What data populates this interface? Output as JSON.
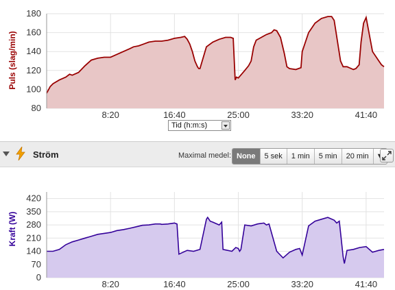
{
  "chart_data": [
    {
      "type": "area",
      "ylabel": "Puls (slag/min)",
      "ylim": [
        80,
        180
      ],
      "yticks": [
        80,
        100,
        120,
        140,
        160,
        180
      ],
      "xlim": [
        0,
        2640
      ],
      "xticks": [
        500,
        1000,
        1500,
        2000,
        2500
      ],
      "xtick_labels": [
        "8:20",
        "16:40",
        "25:00",
        "33:20",
        "41:40"
      ],
      "color": "#990000",
      "fill": "#e8c6c6",
      "grid": true,
      "x": [
        0,
        28,
        50,
        100,
        150,
        180,
        200,
        250,
        300,
        350,
        400,
        450,
        500,
        550,
        600,
        650,
        680,
        720,
        760,
        800,
        850,
        900,
        950,
        1000,
        1050,
        1080,
        1100,
        1120,
        1140,
        1160,
        1180,
        1190,
        1200,
        1250,
        1300,
        1350,
        1400,
        1440,
        1460,
        1475,
        1485,
        1500,
        1550,
        1580,
        1600,
        1620,
        1640,
        1680,
        1720,
        1760,
        1780,
        1800,
        1830,
        1860,
        1880,
        1900,
        1950,
        1990,
        2000,
        2050,
        2100,
        2150,
        2200,
        2230,
        2250,
        2300,
        2320,
        2350,
        2400,
        2420,
        2445,
        2460,
        2480,
        2500,
        2550,
        2600,
        2620,
        2640
      ],
      "y": [
        96,
        103,
        106,
        110,
        113,
        116,
        115,
        118,
        125,
        131,
        133,
        134,
        134,
        137,
        140,
        143,
        145,
        146,
        148,
        150,
        151,
        151,
        152,
        154,
        155,
        156,
        153,
        148,
        140,
        130,
        124,
        122,
        122,
        145,
        150,
        153,
        155,
        155,
        154,
        110,
        113,
        112,
        120,
        125,
        130,
        145,
        152,
        155,
        158,
        160,
        163,
        162,
        155,
        138,
        124,
        122,
        121,
        123,
        140,
        160,
        170,
        175,
        177,
        177,
        173,
        130,
        124,
        124,
        121,
        122,
        126,
        150,
        170,
        176,
        140,
        130,
        126,
        124
      ]
    },
    {
      "type": "area",
      "ylabel": "Kraft (W)",
      "ylim": [
        0,
        455
      ],
      "yticks": [
        0,
        70,
        140,
        210,
        280,
        350,
        420
      ],
      "xlim": [
        0,
        2640
      ],
      "xticks": [
        500,
        1000,
        1500,
        2000,
        2500
      ],
      "xtick_labels": [
        "8:20",
        "16:40",
        "25:00",
        "33:20",
        "41:40"
      ],
      "color": "#330099",
      "fill": "#d6caee",
      "grid": true,
      "x": [
        0,
        50,
        100,
        150,
        200,
        250,
        300,
        350,
        400,
        450,
        500,
        550,
        600,
        650,
        700,
        750,
        800,
        850,
        890,
        900,
        950,
        1000,
        1020,
        1035,
        1100,
        1150,
        1200,
        1250,
        1260,
        1280,
        1300,
        1350,
        1370,
        1380,
        1450,
        1480,
        1500,
        1510,
        1520,
        1550,
        1600,
        1650,
        1700,
        1720,
        1740,
        1800,
        1850,
        1900,
        1950,
        1980,
        2000,
        2050,
        2100,
        2150,
        2200,
        2250,
        2270,
        2290,
        2320,
        2330,
        2350,
        2400,
        2450,
        2500,
        2550,
        2600,
        2640
      ],
      "y": [
        140,
        140,
        150,
        175,
        190,
        200,
        210,
        220,
        230,
        235,
        240,
        250,
        255,
        262,
        270,
        278,
        280,
        285,
        285,
        283,
        285,
        290,
        285,
        125,
        145,
        140,
        150,
        310,
        320,
        300,
        295,
        280,
        295,
        150,
        140,
        160,
        155,
        140,
        150,
        280,
        275,
        285,
        290,
        280,
        285,
        140,
        105,
        135,
        150,
        155,
        120,
        275,
        300,
        310,
        320,
        305,
        290,
        300,
        110,
        75,
        145,
        150,
        160,
        165,
        135,
        145,
        150
      ]
    }
  ],
  "x_unit_select": {
    "label": "Tid (h:m:s)"
  },
  "section": {
    "title": "Ström",
    "max_avg_label": "Maximal medel:",
    "options": [
      "None",
      "5 sek",
      "1 min",
      "5 min",
      "20 min"
    ],
    "selected": "None",
    "dropdown_icon": "chevron-down-icon",
    "expand_icon": "expand-icon",
    "section_icon": "lightning-bolt-icon"
  }
}
